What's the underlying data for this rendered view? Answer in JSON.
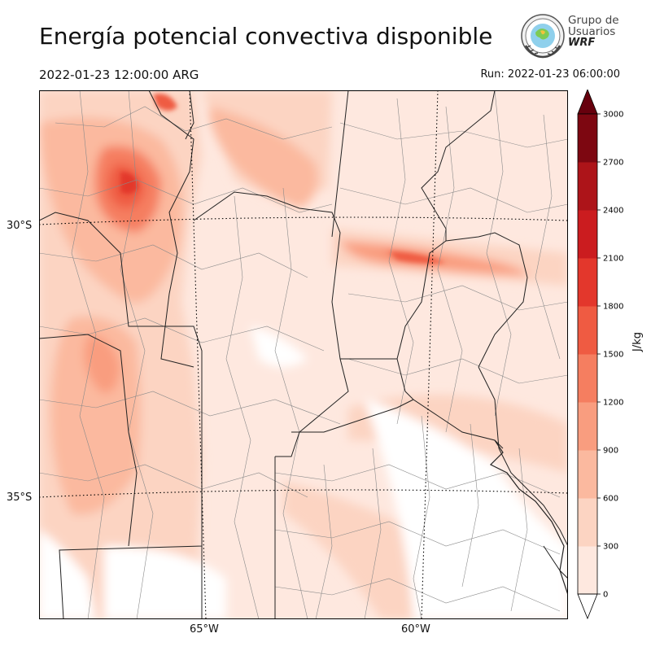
{
  "title": "Energía potencial convectiva disponible",
  "valid_time": "2022-01-23 12:00:00 ARG",
  "run_time": "Run: 2022-01-23 06:00:00",
  "logo": {
    "line1": "Grupo de",
    "line2": "Usuarios",
    "line3": "WRF"
  },
  "map": {
    "lat_labels": [
      "30°S",
      "35°S"
    ],
    "lon_labels": [
      "65°W",
      "60°W"
    ]
  },
  "colorbar": {
    "unit": "J/kg",
    "ticks": [
      "3000",
      "2700",
      "2400",
      "2100",
      "1800",
      "1500",
      "1200",
      "900",
      "600",
      "300",
      "0"
    ],
    "levels": [
      0,
      300,
      600,
      900,
      1200,
      1500,
      1800,
      2100,
      2400,
      2700,
      3000
    ],
    "colors": [
      "#fee8df",
      "#fcd4c2",
      "#fbb99f",
      "#f99d7f",
      "#f57e60",
      "#ef5b42",
      "#e3372c",
      "#cb1c1f",
      "#ad1419",
      "#7d0711"
    ],
    "extend": "both",
    "over_color": "#67000d",
    "under_color": "#ffffff"
  },
  "colors": {
    "water": "#ffffff",
    "border": "#222222",
    "department_lines": "#8a8a8a",
    "gridlines": "#000000"
  }
}
